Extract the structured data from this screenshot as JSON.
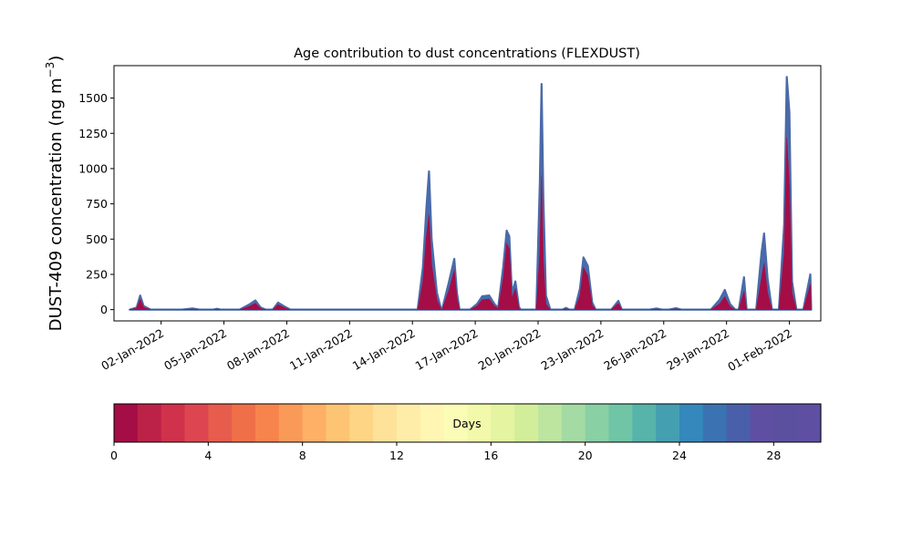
{
  "chart_data": {
    "type": "area",
    "title": "Age contribution to dust concentrations (FLEXDUST)",
    "ylabel_main": "DUST-409 concentration (ng m",
    "ylabel_unit_superscript": "−3",
    "ylabel_close": ")",
    "ylim": [
      -80,
      1730
    ],
    "y_ticks": [
      0,
      250,
      500,
      750,
      1000,
      1250,
      1500
    ],
    "xlim": [
      "2021-12-30T18:00",
      "2022-02-02T12:00"
    ],
    "x_ticks": [
      {
        "date": "2022-01-02",
        "label": "02-Jan-2022"
      },
      {
        "date": "2022-01-05",
        "label": "05-Jan-2022"
      },
      {
        "date": "2022-01-08",
        "label": "08-Jan-2022"
      },
      {
        "date": "2022-01-11",
        "label": "11-Jan-2022"
      },
      {
        "date": "2022-01-14",
        "label": "14-Jan-2022"
      },
      {
        "date": "2022-01-17",
        "label": "17-Jan-2022"
      },
      {
        "date": "2022-01-20",
        "label": "20-Jan-2022"
      },
      {
        "date": "2022-01-23",
        "label": "23-Jan-2022"
      },
      {
        "date": "2022-01-26",
        "label": "26-Jan-2022"
      },
      {
        "date": "2022-01-29",
        "label": "29-Jan-2022"
      },
      {
        "date": "2022-02-01",
        "label": "01-Feb-2022"
      }
    ],
    "series": [
      {
        "role": "total (all ages)",
        "color": "#4a6aa8",
        "points": [
          [
            "2021-12-31T12:00",
            0
          ],
          [
            "2021-12-31T20:00",
            15
          ],
          [
            "2022-01-01T00:00",
            100
          ],
          [
            "2022-01-01T04:00",
            25
          ],
          [
            "2022-01-01T12:00",
            0
          ],
          [
            "2022-01-03T00:00",
            0
          ],
          [
            "2022-01-03T12:00",
            8
          ],
          [
            "2022-01-03T20:00",
            0
          ],
          [
            "2022-01-04T12:00",
            0
          ],
          [
            "2022-01-04T16:00",
            6
          ],
          [
            "2022-01-04T20:00",
            0
          ],
          [
            "2022-01-05T18:00",
            0
          ],
          [
            "2022-01-06T06:00",
            40
          ],
          [
            "2022-01-06T12:00",
            65
          ],
          [
            "2022-01-06T18:00",
            15
          ],
          [
            "2022-01-07T00:00",
            0
          ],
          [
            "2022-01-07T08:00",
            0
          ],
          [
            "2022-01-07T14:00",
            50
          ],
          [
            "2022-01-07T22:00",
            20
          ],
          [
            "2022-01-08T04:00",
            0
          ],
          [
            "2022-01-14T06:00",
            0
          ],
          [
            "2022-01-14T12:00",
            300
          ],
          [
            "2022-01-14T16:00",
            720
          ],
          [
            "2022-01-14T19:00",
            980
          ],
          [
            "2022-01-14T22:00",
            500
          ],
          [
            "2022-01-15T04:00",
            120
          ],
          [
            "2022-01-15T09:00",
            0
          ],
          [
            "2022-01-15T10:00",
            0
          ],
          [
            "2022-01-15T18:00",
            200
          ],
          [
            "2022-01-16T00:00",
            360
          ],
          [
            "2022-01-16T03:00",
            120
          ],
          [
            "2022-01-16T06:00",
            0
          ],
          [
            "2022-01-16T18:00",
            0
          ],
          [
            "2022-01-17T02:00",
            40
          ],
          [
            "2022-01-17T08:00",
            95
          ],
          [
            "2022-01-17T16:00",
            100
          ],
          [
            "2022-01-17T22:00",
            40
          ],
          [
            "2022-01-18T04:00",
            0
          ],
          [
            "2022-01-18T02:00",
            0
          ],
          [
            "2022-01-18T08:00",
            300
          ],
          [
            "2022-01-18T12:00",
            560
          ],
          [
            "2022-01-18T15:00",
            520
          ],
          [
            "2022-01-18T18:00",
            120
          ],
          [
            "2022-01-18T22:00",
            200
          ],
          [
            "2022-01-19T02:00",
            20
          ],
          [
            "2022-01-19T04:00",
            0
          ],
          [
            "2022-01-19T22:00",
            0
          ],
          [
            "2022-01-20T02:00",
            900
          ],
          [
            "2022-01-20T04:00",
            1600
          ],
          [
            "2022-01-20T06:00",
            800
          ],
          [
            "2022-01-20T09:00",
            100
          ],
          [
            "2022-01-20T14:00",
            0
          ],
          [
            "2022-01-21T04:00",
            0
          ],
          [
            "2022-01-21T08:00",
            12
          ],
          [
            "2022-01-21T12:00",
            0
          ],
          [
            "2022-01-21T18:00",
            0
          ],
          [
            "2022-01-22T00:00",
            150
          ],
          [
            "2022-01-22T04:00",
            370
          ],
          [
            "2022-01-22T09:00",
            310
          ],
          [
            "2022-01-22T14:00",
            50
          ],
          [
            "2022-01-22T18:00",
            0
          ],
          [
            "2022-01-23T12:00",
            0
          ],
          [
            "2022-01-23T20:00",
            62
          ],
          [
            "2022-01-24T00:00",
            0
          ],
          [
            "2022-01-25T08:00",
            0
          ],
          [
            "2022-01-25T16:00",
            8
          ],
          [
            "2022-01-25T22:00",
            0
          ],
          [
            "2022-01-26T06:00",
            0
          ],
          [
            "2022-01-26T14:00",
            10
          ],
          [
            "2022-01-26T20:00",
            0
          ],
          [
            "2022-01-28T06:00",
            0
          ],
          [
            "2022-01-28T16:00",
            70
          ],
          [
            "2022-01-28T22:00",
            140
          ],
          [
            "2022-01-29T04:00",
            40
          ],
          [
            "2022-01-29T10:00",
            0
          ],
          [
            "2022-01-29T14:00",
            0
          ],
          [
            "2022-01-29T20:00",
            230
          ],
          [
            "2022-01-29T23:00",
            0
          ],
          [
            "2022-01-30T10:00",
            0
          ],
          [
            "2022-01-30T16:00",
            400
          ],
          [
            "2022-01-30T19:00",
            540
          ],
          [
            "2022-01-30T23:00",
            220
          ],
          [
            "2022-01-31T04:00",
            0
          ],
          [
            "2022-01-31T12:00",
            0
          ],
          [
            "2022-01-31T18:00",
            600
          ],
          [
            "2022-01-31T21:00",
            1650
          ],
          [
            "2022-02-01T00:00",
            1400
          ],
          [
            "2022-02-01T03:00",
            200
          ],
          [
            "2022-02-01T08:00",
            0
          ],
          [
            "2022-02-01T16:00",
            0
          ],
          [
            "2022-02-02T00:00",
            250
          ],
          [
            "2022-02-02T01:00",
            0
          ]
        ]
      },
      {
        "role": "young dust (0-1 days)",
        "color": "#a50d46",
        "points": [
          [
            "2021-12-31T12:00",
            0
          ],
          [
            "2021-12-31T20:00",
            10
          ],
          [
            "2022-01-01T00:00",
            75
          ],
          [
            "2022-01-01T04:00",
            15
          ],
          [
            "2022-01-01T12:00",
            0
          ],
          [
            "2022-01-03T00:00",
            0
          ],
          [
            "2022-01-03T12:00",
            4
          ],
          [
            "2022-01-03T20:00",
            0
          ],
          [
            "2022-01-04T12:00",
            0
          ],
          [
            "2022-01-04T16:00",
            3
          ],
          [
            "2022-01-04T20:00",
            0
          ],
          [
            "2022-01-05T18:00",
            0
          ],
          [
            "2022-01-06T06:00",
            25
          ],
          [
            "2022-01-06T12:00",
            45
          ],
          [
            "2022-01-06T18:00",
            8
          ],
          [
            "2022-01-07T00:00",
            0
          ],
          [
            "2022-01-07T08:00",
            0
          ],
          [
            "2022-01-07T14:00",
            35
          ],
          [
            "2022-01-07T22:00",
            12
          ],
          [
            "2022-01-08T04:00",
            0
          ],
          [
            "2022-01-14T06:00",
            0
          ],
          [
            "2022-01-14T12:00",
            200
          ],
          [
            "2022-01-14T16:00",
            520
          ],
          [
            "2022-01-14T19:00",
            670
          ],
          [
            "2022-01-14T22:00",
            320
          ],
          [
            "2022-01-15T04:00",
            70
          ],
          [
            "2022-01-15T09:00",
            0
          ],
          [
            "2022-01-15T10:00",
            0
          ],
          [
            "2022-01-15T18:00",
            140
          ],
          [
            "2022-01-16T00:00",
            280
          ],
          [
            "2022-01-16T03:00",
            80
          ],
          [
            "2022-01-16T06:00",
            0
          ],
          [
            "2022-01-16T18:00",
            0
          ],
          [
            "2022-01-17T02:00",
            25
          ],
          [
            "2022-01-17T08:00",
            70
          ],
          [
            "2022-01-17T16:00",
            75
          ],
          [
            "2022-01-17T22:00",
            25
          ],
          [
            "2022-01-18T04:00",
            0
          ],
          [
            "2022-01-18T02:00",
            0
          ],
          [
            "2022-01-18T08:00",
            220
          ],
          [
            "2022-01-18T12:00",
            470
          ],
          [
            "2022-01-18T15:00",
            430
          ],
          [
            "2022-01-18T18:00",
            80
          ],
          [
            "2022-01-18T22:00",
            150
          ],
          [
            "2022-01-19T02:00",
            10
          ],
          [
            "2022-01-19T04:00",
            0
          ],
          [
            "2022-01-19T22:00",
            0
          ],
          [
            "2022-01-20T02:00",
            400
          ],
          [
            "2022-01-20T04:00",
            950
          ],
          [
            "2022-01-20T06:00",
            350
          ],
          [
            "2022-01-20T09:00",
            40
          ],
          [
            "2022-01-20T14:00",
            0
          ],
          [
            "2022-01-21T04:00",
            0
          ],
          [
            "2022-01-21T08:00",
            6
          ],
          [
            "2022-01-21T12:00",
            0
          ],
          [
            "2022-01-21T18:00",
            0
          ],
          [
            "2022-01-22T00:00",
            100
          ],
          [
            "2022-01-22T04:00",
            300
          ],
          [
            "2022-01-22T09:00",
            240
          ],
          [
            "2022-01-22T14:00",
            30
          ],
          [
            "2022-01-22T18:00",
            0
          ],
          [
            "2022-01-23T12:00",
            0
          ],
          [
            "2022-01-23T20:00",
            45
          ],
          [
            "2022-01-24T00:00",
            0
          ],
          [
            "2022-01-25T08:00",
            0
          ],
          [
            "2022-01-25T16:00",
            4
          ],
          [
            "2022-01-25T22:00",
            0
          ],
          [
            "2022-01-26T06:00",
            0
          ],
          [
            "2022-01-26T14:00",
            5
          ],
          [
            "2022-01-26T20:00",
            0
          ],
          [
            "2022-01-28T06:00",
            0
          ],
          [
            "2022-01-28T16:00",
            40
          ],
          [
            "2022-01-28T22:00",
            90
          ],
          [
            "2022-01-29T04:00",
            20
          ],
          [
            "2022-01-29T10:00",
            0
          ],
          [
            "2022-01-29T14:00",
            0
          ],
          [
            "2022-01-29T20:00",
            130
          ],
          [
            "2022-01-29T23:00",
            0
          ],
          [
            "2022-01-30T10:00",
            0
          ],
          [
            "2022-01-30T16:00",
            220
          ],
          [
            "2022-01-30T19:00",
            330
          ],
          [
            "2022-01-30T23:00",
            120
          ],
          [
            "2022-01-31T04:00",
            0
          ],
          [
            "2022-01-31T12:00",
            0
          ],
          [
            "2022-01-31T18:00",
            400
          ],
          [
            "2022-01-31T21:00",
            1220
          ],
          [
            "2022-02-01T00:00",
            880
          ],
          [
            "2022-02-01T03:00",
            120
          ],
          [
            "2022-02-01T08:00",
            0
          ],
          [
            "2022-02-01T16:00",
            0
          ],
          [
            "2022-02-02T00:00",
            180
          ],
          [
            "2022-02-02T01:00",
            0
          ]
        ]
      }
    ],
    "colorbar": {
      "label": "Days",
      "range": [
        0,
        30
      ],
      "ticks": [
        0,
        4,
        8,
        12,
        16,
        20,
        24,
        28
      ],
      "colors": [
        "#a50d46",
        "#bc2148",
        "#cf324a",
        "#dd4650",
        "#e65c4d",
        "#ef7048",
        "#f7844d",
        "#fa9a59",
        "#fdb066",
        "#fdc473",
        "#fed585",
        "#fee29a",
        "#feeda9",
        "#fff6b3",
        "#fbfcb6",
        "#f2f9aa",
        "#e4f4a0",
        "#d3ee9b",
        "#bde59f",
        "#a4dba4",
        "#89d0a5",
        "#6fc5a5",
        "#56b4aa",
        "#449fb1",
        "#3488bb",
        "#3b72b1",
        "#4a5fa9",
        "#5e4fa2",
        "#5b50a0",
        "#5e4fa2"
      ]
    }
  }
}
